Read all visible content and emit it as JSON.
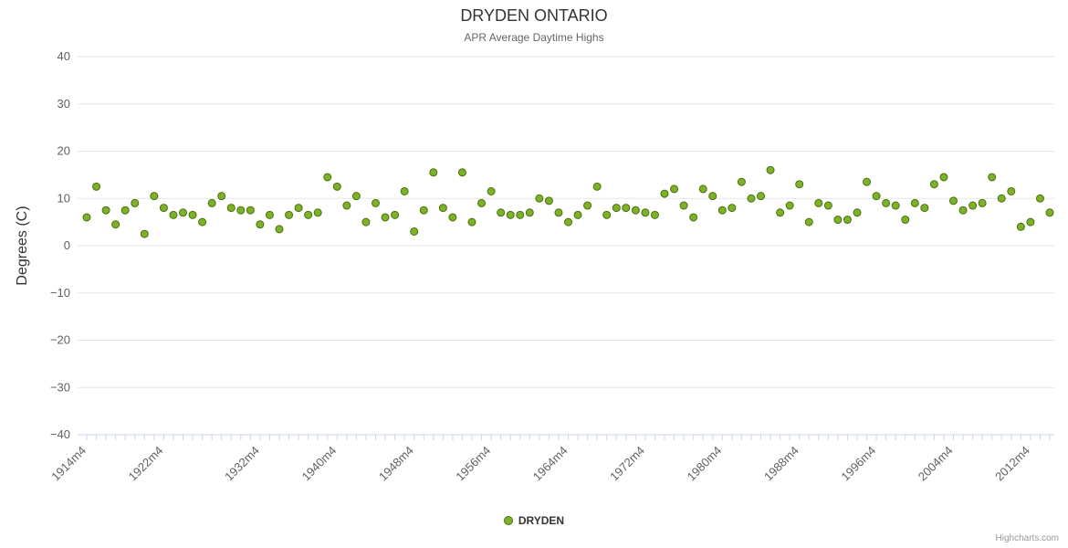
{
  "chart_data": {
    "type": "scatter",
    "title": "DRYDEN ONTARIO",
    "subtitle": "APR Average Daytime Highs",
    "ylabel": "Degrees (C)",
    "ylim": [
      -40,
      40
    ],
    "ytick_labels": [
      "40",
      "30",
      "20",
      "10",
      "0",
      "−10",
      "−20",
      "−30",
      "−40"
    ],
    "ytick_values": [
      40,
      30,
      20,
      10,
      0,
      -10,
      -20,
      -30,
      -40
    ],
    "xtick_labels": [
      "1914m4",
      "1922m4",
      "1932m4",
      "1940m4",
      "1948m4",
      "1956m4",
      "1964m4",
      "1972m4",
      "1980m4",
      "1988m4",
      "1996m4",
      "2004m4",
      "2012m4"
    ],
    "grid": "on",
    "legend_position": "bottom-center",
    "x_start_year": 1914,
    "x_step_years": 1,
    "series": [
      {
        "name": "DRYDEN",
        "values": [
          6,
          12.5,
          7.5,
          4.5,
          7.5,
          9,
          2.5,
          10.5,
          8,
          6.5,
          7,
          6.5,
          5,
          9,
          10.5,
          8,
          7.5,
          7.5,
          4.5,
          6.5,
          3.5,
          6.5,
          8,
          6.5,
          7,
          14.5,
          12.5,
          8.5,
          10.5,
          5,
          9,
          6,
          6.5,
          11.5,
          3,
          7.5,
          15.5,
          8,
          6,
          15.5,
          5,
          9,
          11.5,
          7,
          6.5,
          6.5,
          7,
          10,
          9.5,
          7,
          5,
          6.5,
          8.5,
          12.5,
          6.5,
          8,
          8,
          7.5,
          7,
          6.5,
          11,
          12,
          8.5,
          6,
          12,
          10.5,
          7.5,
          8,
          13.5,
          10,
          10.5,
          16,
          7,
          8.5,
          13,
          5,
          9,
          8.5,
          5.5,
          5.5,
          7,
          13.5,
          10.5,
          9,
          8.5,
          5.5,
          9,
          8,
          13,
          14.5,
          9.5,
          7.5,
          8.5,
          9,
          14.5,
          10,
          11.5,
          4,
          5,
          10,
          7
        ]
      }
    ],
    "colors": {
      "point_fill": "#7db228",
      "point_stroke": "#49700e",
      "grid_line": "#e6e6e6",
      "axis_line": "#ccd6eb",
      "tick": "#ccd6eb",
      "axis_label": "#606060"
    }
  },
  "legend": {
    "label": "DRYDEN"
  },
  "credits": {
    "text": "Highcharts.com"
  }
}
